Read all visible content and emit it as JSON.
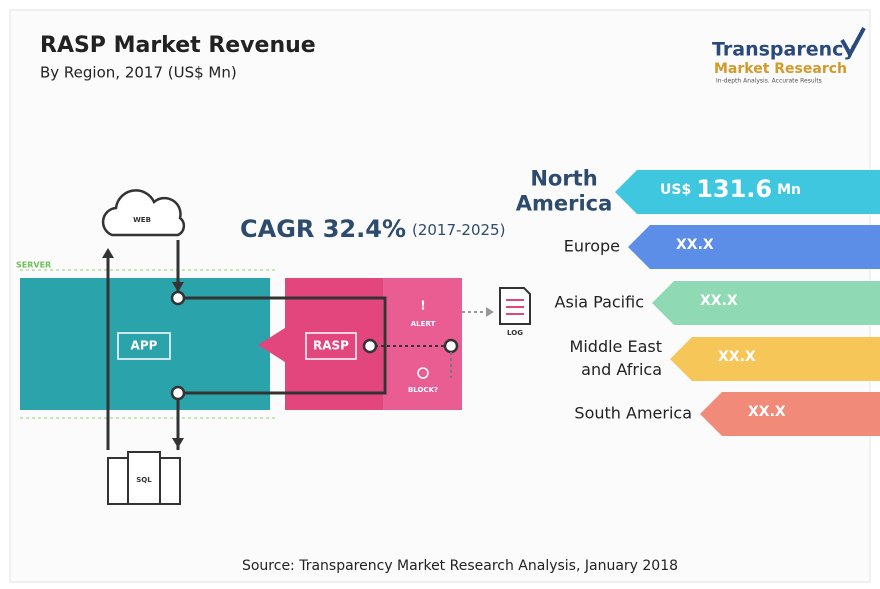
{
  "header": {
    "title": "RASP Market Revenue",
    "subtitle": "By Region, 2017 (US$ Mn)"
  },
  "logo": {
    "line1": "Transparency",
    "line2": "Market Research",
    "tagline": "In-depth Analysis. Accurate Results"
  },
  "cagr": {
    "label": "CAGR 32.4%",
    "period": "(2017-2025)"
  },
  "diagram": {
    "server": "SERVER",
    "web": "WEB",
    "app": "APP",
    "rasp": "RASP",
    "alert_icon": "!",
    "alert": "ALERT",
    "block": "BLOCK?",
    "log": "LOG",
    "sql": "SQL"
  },
  "regions": [
    {
      "name_lines": [
        "North",
        "America"
      ],
      "value_parts": [
        "US$",
        "131.6",
        "Mn"
      ]
    },
    {
      "name_lines": [
        "Europe"
      ],
      "value_parts": [
        "XX.X"
      ]
    },
    {
      "name_lines": [
        "Asia Pacific"
      ],
      "value_parts": [
        "XX.X"
      ]
    },
    {
      "name_lines": [
        "Middle East",
        "and Africa"
      ],
      "value_parts": [
        "XX.X"
      ]
    },
    {
      "name_lines": [
        "South America"
      ],
      "value_parts": [
        "XX.X"
      ]
    }
  ],
  "source": "Source: Transparency Market Research Analysis, January 2018"
}
